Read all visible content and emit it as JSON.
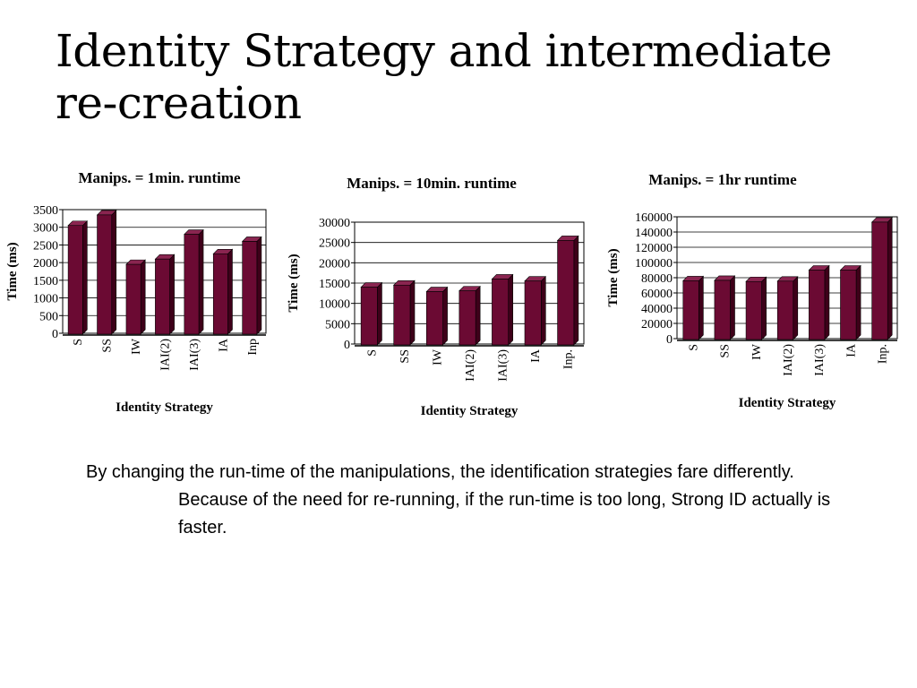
{
  "slide": {
    "title_line1": "Identity Strategy and intermediate",
    "title_line2": "re-creation",
    "body_line1": "By changing the run-time of the manipulations, the identification strategies fare differently.",
    "body_line2": "Because of the need for re-running, if the run-time is too long, Strong ID actually is faster."
  },
  "colors": {
    "bar_front": "#6b0a33",
    "bar_top": "#8a2550",
    "bar_side": "#3e0019",
    "axis": "#000000",
    "grid": "#000000"
  },
  "chart_data": [
    {
      "type": "bar",
      "title": "Manips. = 1min. runtime",
      "xlabel": "Identity Strategy",
      "ylabel": "Time (ms)",
      "categories": [
        "S",
        "SS",
        "IW",
        "IAI(2)",
        "IAI(3)",
        "IA",
        "Inp"
      ],
      "values": [
        3050,
        3350,
        1950,
        2100,
        2800,
        2250,
        2600
      ],
      "ylim": [
        0,
        3500
      ],
      "yticks": [
        "0",
        "500",
        "1000",
        "1500",
        "2000",
        "2500",
        "3000",
        "3500"
      ],
      "grid": true,
      "legend": "none"
    },
    {
      "type": "bar",
      "title": "Manips. = 10min. runtime",
      "xlabel": "Identity Strategy",
      "ylabel": "Time (ms)",
      "categories": [
        "S",
        "SS",
        "IW",
        "IAI(2)",
        "IAI(3)",
        "IA",
        "Inp."
      ],
      "values": [
        14000,
        14500,
        12900,
        13100,
        16000,
        15500,
        25500
      ],
      "ylim": [
        0,
        30000
      ],
      "yticks": [
        "0",
        "5000",
        "10000",
        "15000",
        "20000",
        "25000",
        "30000"
      ],
      "grid": true,
      "legend": "none"
    },
    {
      "type": "bar",
      "title": "Manips. = 1hr runtime",
      "xlabel": "Identity Strategy",
      "ylabel": "Time (ms)",
      "categories": [
        "S",
        "SS",
        "IW",
        "IAI(2)",
        "IAI(3)",
        "IA",
        "Inp."
      ],
      "values": [
        76000,
        76500,
        75000,
        75500,
        90000,
        90000,
        153000
      ],
      "ylim": [
        0,
        160000
      ],
      "yticks": [
        "0",
        "20000",
        "40000",
        "60000",
        "80000",
        "100000",
        "120000",
        "140000",
        "160000"
      ],
      "grid": true,
      "legend": "none"
    }
  ]
}
